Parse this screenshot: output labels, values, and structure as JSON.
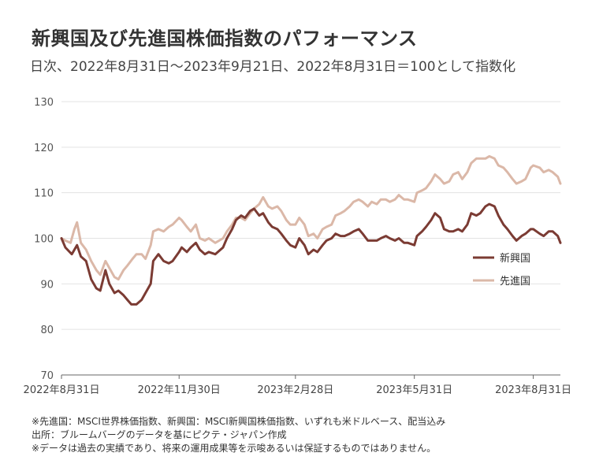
{
  "title": "新興国及び先進国株価指数のパフォーマンス",
  "subtitle": "日次、2022年8月31日～2023年9月21日、2022年8月31日＝100として指数化",
  "notes": [
    "※先進国：MSCI世界株価指数、新興国：MSCI新興国株価指数、いずれも米ドルベース、配当込み",
    "出所：ブルームバーグのデータを基にピクテ・ジャパン作成",
    "※データは過去の実績であり、将来の運用成果等を示唆あるいは保証するものではありません。"
  ],
  "chart_data": {
    "type": "line",
    "title": "",
    "xlabel": "",
    "ylabel": "",
    "ylim": [
      70,
      130
    ],
    "yticks": [
      70,
      80,
      90,
      100,
      110,
      120,
      130
    ],
    "xlim": [
      "2022-08-31",
      "2023-09-21"
    ],
    "xticks": [
      {
        "date": "2022-08-31",
        "label": "2022年8月31日"
      },
      {
        "date": "2022-11-30",
        "label": "2022年11月30日"
      },
      {
        "date": "2023-02-28",
        "label": "2023年2月28日"
      },
      {
        "date": "2023-05-31",
        "label": "2023年5月31日"
      },
      {
        "date": "2023-08-31",
        "label": "2023年8月31日"
      }
    ],
    "grid": "horizontal",
    "legend": "right",
    "series": [
      {
        "name": "新興国",
        "color": "#7b3b33",
        "points": [
          [
            "2022-08-31",
            100
          ],
          [
            "2022-09-03",
            98
          ],
          [
            "2022-09-08",
            96.5
          ],
          [
            "2022-09-12",
            98.5
          ],
          [
            "2022-09-15",
            96
          ],
          [
            "2022-09-19",
            95
          ],
          [
            "2022-09-23",
            91
          ],
          [
            "2022-09-27",
            89
          ],
          [
            "2022-09-30",
            88.5
          ],
          [
            "2022-10-04",
            93
          ],
          [
            "2022-10-07",
            90
          ],
          [
            "2022-10-11",
            88
          ],
          [
            "2022-10-14",
            88.5
          ],
          [
            "2022-10-18",
            87.5
          ],
          [
            "2022-10-21",
            86.5
          ],
          [
            "2022-10-24",
            85.5
          ],
          [
            "2022-10-28",
            85.5
          ],
          [
            "2022-11-01",
            86.5
          ],
          [
            "2022-11-04",
            88
          ],
          [
            "2022-11-08",
            90
          ],
          [
            "2022-11-10",
            95
          ],
          [
            "2022-11-14",
            96.5
          ],
          [
            "2022-11-18",
            95
          ],
          [
            "2022-11-22",
            94.5
          ],
          [
            "2022-11-25",
            95
          ],
          [
            "2022-11-30",
            97
          ],
          [
            "2022-12-02",
            98
          ],
          [
            "2022-12-06",
            97
          ],
          [
            "2022-12-09",
            98
          ],
          [
            "2022-12-13",
            99
          ],
          [
            "2022-12-16",
            97.5
          ],
          [
            "2022-12-20",
            96.5
          ],
          [
            "2022-12-23",
            97
          ],
          [
            "2022-12-28",
            96.5
          ],
          [
            "2023-01-03",
            98
          ],
          [
            "2023-01-06",
            100
          ],
          [
            "2023-01-10",
            102
          ],
          [
            "2023-01-13",
            104
          ],
          [
            "2023-01-17",
            105
          ],
          [
            "2023-01-20",
            104.5
          ],
          [
            "2023-01-24",
            106
          ],
          [
            "2023-01-27",
            106.5
          ],
          [
            "2023-01-31",
            105
          ],
          [
            "2023-02-03",
            105.5
          ],
          [
            "2023-02-07",
            103.5
          ],
          [
            "2023-02-10",
            102.5
          ],
          [
            "2023-02-14",
            102
          ],
          [
            "2023-02-17",
            101
          ],
          [
            "2023-02-21",
            99.5
          ],
          [
            "2023-02-24",
            98.5
          ],
          [
            "2023-02-28",
            98
          ],
          [
            "2023-03-03",
            100
          ],
          [
            "2023-03-07",
            98.5
          ],
          [
            "2023-03-10",
            96.5
          ],
          [
            "2023-03-14",
            97.5
          ],
          [
            "2023-03-17",
            97
          ],
          [
            "2023-03-21",
            98.5
          ],
          [
            "2023-03-24",
            99.5
          ],
          [
            "2023-03-28",
            100
          ],
          [
            "2023-03-31",
            101
          ],
          [
            "2023-04-04",
            100.5
          ],
          [
            "2023-04-07",
            100.5
          ],
          [
            "2023-04-11",
            101
          ],
          [
            "2023-04-14",
            101.5
          ],
          [
            "2023-04-18",
            102
          ],
          [
            "2023-04-21",
            101
          ],
          [
            "2023-04-25",
            99.5
          ],
          [
            "2023-04-28",
            99.5
          ],
          [
            "2023-05-02",
            99.5
          ],
          [
            "2023-05-05",
            100
          ],
          [
            "2023-05-09",
            100.5
          ],
          [
            "2023-05-12",
            100
          ],
          [
            "2023-05-16",
            99.5
          ],
          [
            "2023-05-19",
            100
          ],
          [
            "2023-05-23",
            99
          ],
          [
            "2023-05-26",
            99
          ],
          [
            "2023-05-31",
            98.5
          ],
          [
            "2023-06-02",
            100.5
          ],
          [
            "2023-06-06",
            101.5
          ],
          [
            "2023-06-09",
            102.5
          ],
          [
            "2023-06-13",
            104
          ],
          [
            "2023-06-16",
            105.5
          ],
          [
            "2023-06-20",
            104.5
          ],
          [
            "2023-06-23",
            102
          ],
          [
            "2023-06-27",
            101.5
          ],
          [
            "2023-06-30",
            101.5
          ],
          [
            "2023-07-04",
            102
          ],
          [
            "2023-07-07",
            101.5
          ],
          [
            "2023-07-11",
            103
          ],
          [
            "2023-07-14",
            105.5
          ],
          [
            "2023-07-18",
            105
          ],
          [
            "2023-07-21",
            105.5
          ],
          [
            "2023-07-25",
            107
          ],
          [
            "2023-07-28",
            107.5
          ],
          [
            "2023-08-01",
            107
          ],
          [
            "2023-08-04",
            105
          ],
          [
            "2023-08-08",
            103
          ],
          [
            "2023-08-11",
            102
          ],
          [
            "2023-08-15",
            100.5
          ],
          [
            "2023-08-18",
            99.5
          ],
          [
            "2023-08-22",
            100.5
          ],
          [
            "2023-08-25",
            101
          ],
          [
            "2023-08-29",
            102
          ],
          [
            "2023-08-31",
            102
          ],
          [
            "2023-09-05",
            101
          ],
          [
            "2023-09-08",
            100.5
          ],
          [
            "2023-09-12",
            101.5
          ],
          [
            "2023-09-15",
            101.5
          ],
          [
            "2023-09-19",
            100.5
          ],
          [
            "2023-09-21",
            99
          ]
        ]
      },
      {
        "name": "先進国",
        "color": "#dbb8a8",
        "points": [
          [
            "2022-08-31",
            100
          ],
          [
            "2022-09-03",
            99.5
          ],
          [
            "2022-09-07",
            99
          ],
          [
            "2022-09-10",
            102
          ],
          [
            "2022-09-12",
            103.5
          ],
          [
            "2022-09-15",
            99
          ],
          [
            "2022-09-19",
            97.5
          ],
          [
            "2022-09-23",
            95
          ],
          [
            "2022-09-27",
            93
          ],
          [
            "2022-09-30",
            92
          ],
          [
            "2022-10-04",
            95
          ],
          [
            "2022-10-07",
            93.5
          ],
          [
            "2022-10-11",
            91.5
          ],
          [
            "2022-10-14",
            91
          ],
          [
            "2022-10-18",
            93
          ],
          [
            "2022-10-21",
            94
          ],
          [
            "2022-10-25",
            95.5
          ],
          [
            "2022-10-28",
            96.5
          ],
          [
            "2022-11-01",
            96.5
          ],
          [
            "2022-11-04",
            95.5
          ],
          [
            "2022-11-08",
            98.5
          ],
          [
            "2022-11-10",
            101.5
          ],
          [
            "2022-11-14",
            102
          ],
          [
            "2022-11-18",
            101.5
          ],
          [
            "2022-11-22",
            102.5
          ],
          [
            "2022-11-25",
            103
          ],
          [
            "2022-11-30",
            104.5
          ],
          [
            "2022-12-02",
            104
          ],
          [
            "2022-12-06",
            102.5
          ],
          [
            "2022-12-09",
            101.5
          ],
          [
            "2022-12-13",
            103
          ],
          [
            "2022-12-16",
            100
          ],
          [
            "2022-12-20",
            99.5
          ],
          [
            "2022-12-23",
            100
          ],
          [
            "2022-12-28",
            99
          ],
          [
            "2023-01-03",
            100
          ],
          [
            "2023-01-06",
            101.5
          ],
          [
            "2023-01-10",
            103
          ],
          [
            "2023-01-13",
            104.5
          ],
          [
            "2023-01-17",
            104.5
          ],
          [
            "2023-01-20",
            104
          ],
          [
            "2023-01-24",
            105.5
          ],
          [
            "2023-01-27",
            106.5
          ],
          [
            "2023-01-31",
            107.5
          ],
          [
            "2023-02-03",
            109
          ],
          [
            "2023-02-07",
            107
          ],
          [
            "2023-02-10",
            106.5
          ],
          [
            "2023-02-14",
            107
          ],
          [
            "2023-02-17",
            106
          ],
          [
            "2023-02-21",
            104
          ],
          [
            "2023-02-24",
            103
          ],
          [
            "2023-02-28",
            103
          ],
          [
            "2023-03-03",
            104.5
          ],
          [
            "2023-03-07",
            103
          ],
          [
            "2023-03-10",
            100.5
          ],
          [
            "2023-03-14",
            101
          ],
          [
            "2023-03-17",
            100
          ],
          [
            "2023-03-21",
            102
          ],
          [
            "2023-03-24",
            102.5
          ],
          [
            "2023-03-28",
            103
          ],
          [
            "2023-03-31",
            105
          ],
          [
            "2023-04-04",
            105.5
          ],
          [
            "2023-04-07",
            106
          ],
          [
            "2023-04-11",
            107
          ],
          [
            "2023-04-14",
            108
          ],
          [
            "2023-04-18",
            108.5
          ],
          [
            "2023-04-21",
            108
          ],
          [
            "2023-04-25",
            107
          ],
          [
            "2023-04-28",
            108
          ],
          [
            "2023-05-02",
            107.5
          ],
          [
            "2023-05-05",
            108.5
          ],
          [
            "2023-05-09",
            108.5
          ],
          [
            "2023-05-12",
            108
          ],
          [
            "2023-05-16",
            108.5
          ],
          [
            "2023-05-19",
            109.5
          ],
          [
            "2023-05-23",
            108.5
          ],
          [
            "2023-05-26",
            108.5
          ],
          [
            "2023-05-31",
            108
          ],
          [
            "2023-06-02",
            110
          ],
          [
            "2023-06-06",
            110.5
          ],
          [
            "2023-06-09",
            111
          ],
          [
            "2023-06-13",
            112.5
          ],
          [
            "2023-06-16",
            114
          ],
          [
            "2023-06-20",
            113
          ],
          [
            "2023-06-23",
            112
          ],
          [
            "2023-06-27",
            112.5
          ],
          [
            "2023-06-30",
            114
          ],
          [
            "2023-07-04",
            114.5
          ],
          [
            "2023-07-07",
            113
          ],
          [
            "2023-07-11",
            114.5
          ],
          [
            "2023-07-14",
            116.5
          ],
          [
            "2023-07-18",
            117.5
          ],
          [
            "2023-07-21",
            117.5
          ],
          [
            "2023-07-25",
            117.5
          ],
          [
            "2023-07-28",
            118
          ],
          [
            "2023-08-01",
            117.5
          ],
          [
            "2023-08-04",
            116
          ],
          [
            "2023-08-08",
            115.5
          ],
          [
            "2023-08-11",
            114.5
          ],
          [
            "2023-08-15",
            113
          ],
          [
            "2023-08-18",
            112
          ],
          [
            "2023-08-22",
            112.5
          ],
          [
            "2023-08-25",
            113
          ],
          [
            "2023-08-29",
            115.5
          ],
          [
            "2023-08-31",
            116
          ],
          [
            "2023-09-05",
            115.5
          ],
          [
            "2023-09-08",
            114.5
          ],
          [
            "2023-09-12",
            115
          ],
          [
            "2023-09-15",
            114.5
          ],
          [
            "2023-09-19",
            113.5
          ],
          [
            "2023-09-21",
            112
          ]
        ]
      }
    ]
  }
}
